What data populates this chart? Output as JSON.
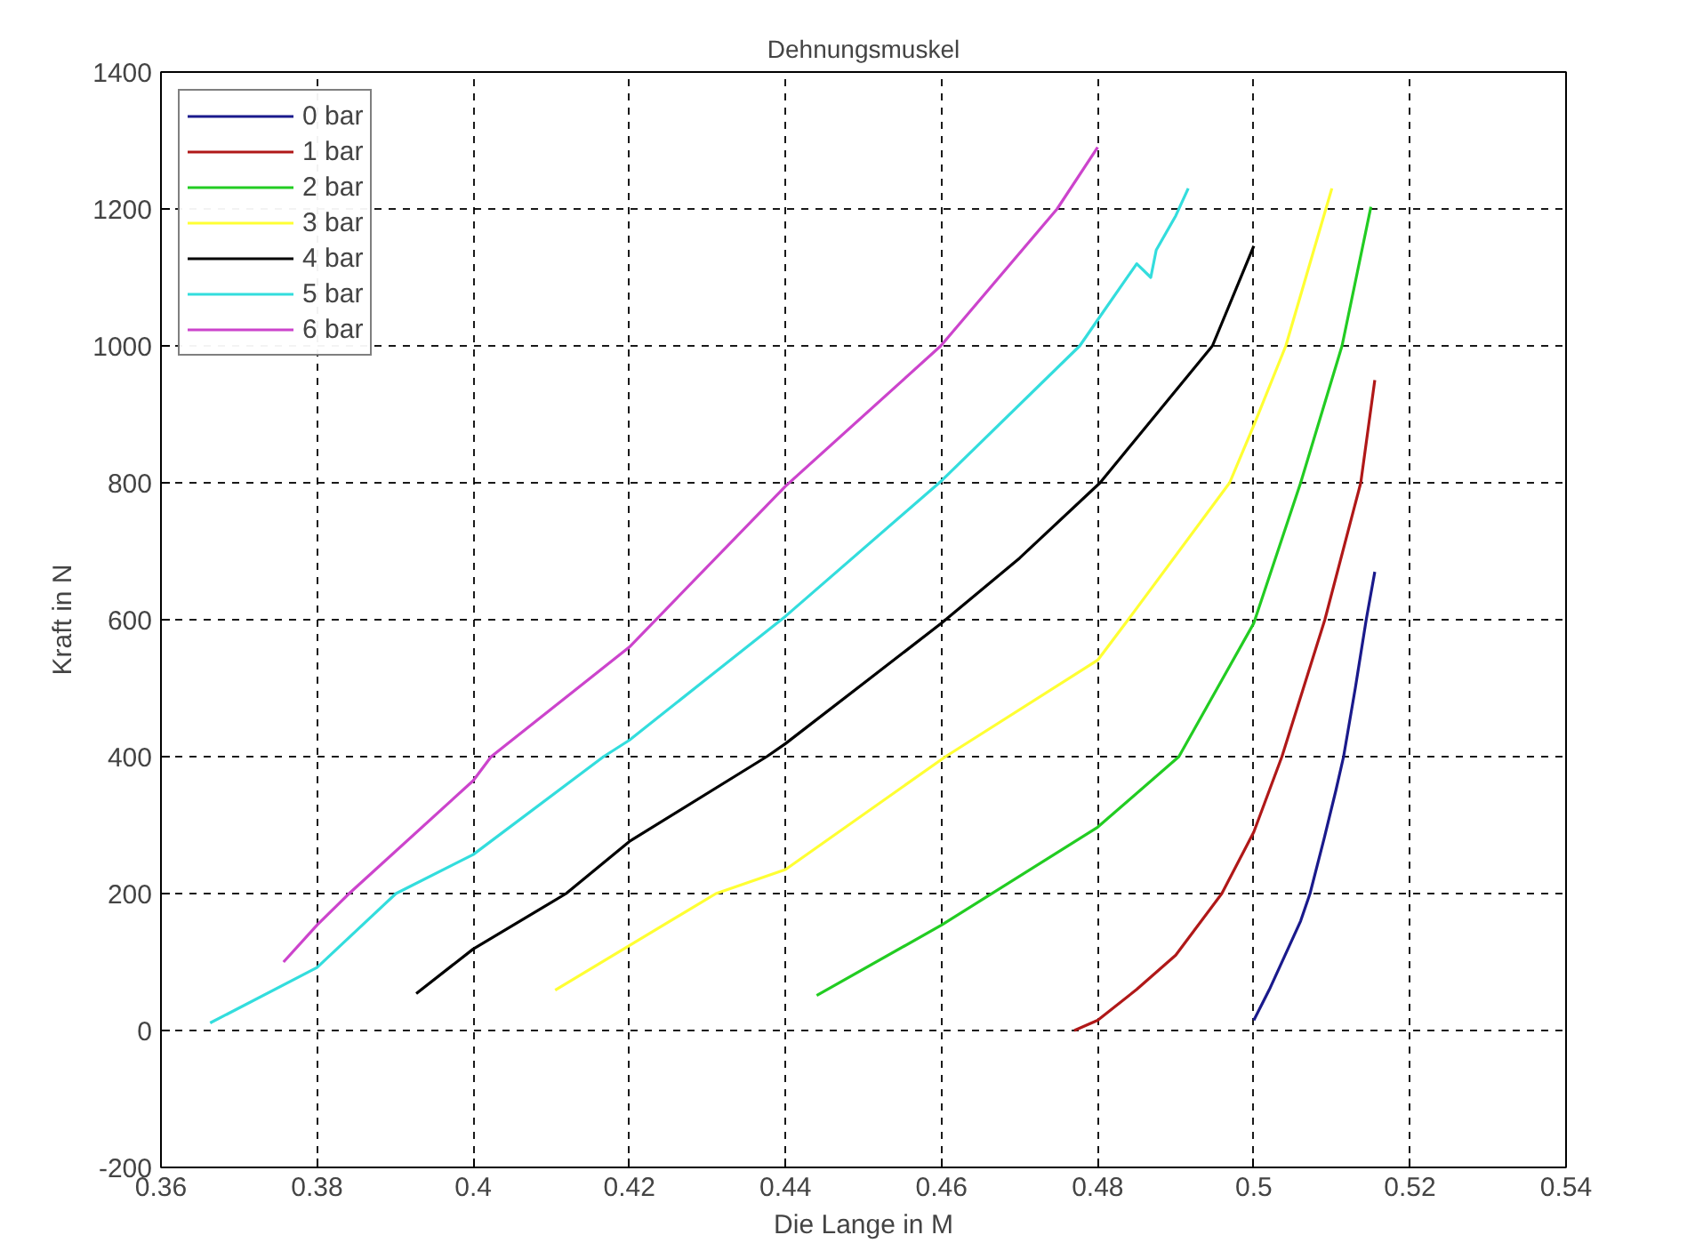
{
  "chart_data": {
    "type": "line",
    "title": "Dehnungsmuskel",
    "xlabel": "Die Lange in M",
    "ylabel": "Kraft in N",
    "xlim": [
      0.36,
      0.54
    ],
    "ylim": [
      -200,
      1400
    ],
    "xticks": [
      0.36,
      0.38,
      0.4,
      0.42,
      0.44,
      0.46,
      0.48,
      0.5,
      0.52,
      0.54
    ],
    "yticks": [
      -200,
      0,
      200,
      400,
      600,
      800,
      1000,
      1200,
      1400
    ],
    "grid": true,
    "legend": "top left",
    "line_style": "solid",
    "series": [
      {
        "name": "0 bar",
        "color": "#1a1a8c",
        "x": [
          0.5,
          0.502,
          0.504,
          0.506,
          0.5072,
          0.509,
          0.5105,
          0.5115,
          0.513,
          0.5144,
          0.5155
        ],
        "values": [
          15,
          60,
          110,
          160,
          200,
          280,
          350,
          400,
          500,
          600,
          670
        ]
      },
      {
        "name": "1 bar",
        "color": "#b01818",
        "x": [
          0.477,
          0.48,
          0.485,
          0.49,
          0.4959,
          0.5,
          0.5036,
          0.5091,
          0.5137,
          0.5155
        ],
        "values": [
          0,
          15,
          60,
          110,
          200,
          290,
          400,
          600,
          800,
          950
        ]
      },
      {
        "name": "2 bar",
        "color": "#22cc22",
        "x": [
          0.444,
          0.46,
          0.48,
          0.4904,
          0.5,
          0.506,
          0.5113,
          0.515
        ],
        "values": [
          51,
          154,
          297,
          400,
          595,
          800,
          1000,
          1203
        ]
      },
      {
        "name": "3 bar",
        "color": "#ffff33",
        "x": [
          0.4105,
          0.4311,
          0.44,
          0.4605,
          0.48,
          0.4839,
          0.4969,
          0.5,
          0.5041,
          0.51
        ],
        "values": [
          59,
          200,
          235,
          400,
          541,
          600,
          800,
          884,
          1000,
          1230
        ]
      },
      {
        "name": "4 bar",
        "color": "#000000",
        "x": [
          0.3927,
          0.4,
          0.4119,
          0.42,
          0.4376,
          0.44,
          0.46,
          0.47,
          0.4803,
          0.4947,
          0.5
        ],
        "values": [
          54,
          119,
          200,
          276,
          400,
          419,
          595,
          690,
          800,
          1000,
          1146
        ]
      },
      {
        "name": "5 bar",
        "color": "#33dddd",
        "x": [
          0.3663,
          0.38,
          0.3901,
          0.4,
          0.4167,
          0.42,
          0.44,
          0.46,
          0.4777,
          0.48,
          0.485,
          0.4868,
          0.4875,
          0.49,
          0.4916
        ],
        "values": [
          11,
          92,
          200,
          257,
          400,
          424,
          605,
          803,
          1000,
          1038,
          1120,
          1100,
          1140,
          1190,
          1230
        ]
      },
      {
        "name": "6 bar",
        "color": "#cc44cc",
        "x": [
          0.3757,
          0.38,
          0.3841,
          0.4,
          0.4023,
          0.42,
          0.44,
          0.4599,
          0.4748,
          0.48
        ],
        "values": [
          100,
          154,
          200,
          365,
          400,
          560,
          795,
          1000,
          1200,
          1290
        ]
      }
    ]
  }
}
